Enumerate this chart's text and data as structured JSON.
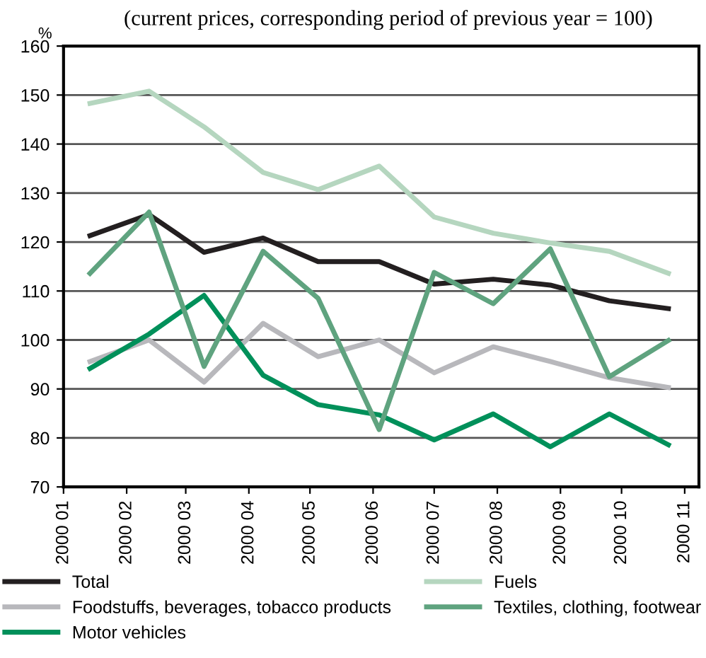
{
  "chart_data": {
    "type": "line",
    "subtitle": "(current prices, corresponding period of previous year = 100)",
    "ylabel": "%",
    "x": [
      "2000-01-14",
      "2000-02-12",
      "2000-03-10",
      "2000-04-08",
      "2000-05-05",
      "2000-06-04",
      "2000-07-01",
      "2000-07-30",
      "2000-08-27",
      "2000-09-25",
      "2000-10-24"
    ],
    "series": [
      {
        "name": "Total",
        "color": "#231f20",
        "values": [
          121.3,
          125.6,
          117.9,
          120.8,
          116.0,
          116.0,
          111.4,
          112.4,
          111.2,
          108.0,
          106.4
        ]
      },
      {
        "name": "Foodstuffs, beverages, tobacco products",
        "color": "#b8b8bc",
        "values": [
          95.6,
          100.0,
          91.4,
          103.4,
          96.6,
          100.0,
          93.3,
          98.6,
          95.6,
          92.3,
          90.3
        ]
      },
      {
        "name": "Motor vehicles",
        "color": "#00905a",
        "values": [
          94.2,
          101.2,
          109.1,
          92.8,
          86.8,
          84.7,
          79.6,
          84.9,
          78.2,
          84.9,
          78.6
        ]
      },
      {
        "name": "Fuels",
        "color": "#b5d6bf",
        "values": [
          148.3,
          150.8,
          143.5,
          134.2,
          130.7,
          135.5,
          125.1,
          121.8,
          119.8,
          118.1,
          113.6
        ]
      },
      {
        "name": "Textiles, clothing, footwear",
        "color": "#5fa37f",
        "values": [
          113.6,
          126.1,
          94.6,
          118.1,
          108.5,
          81.7,
          113.8,
          107.4,
          118.6,
          92.5,
          99.9
        ]
      }
    ],
    "xlim": [
      "2000-01",
      "2000-11-08"
    ],
    "xticks": [
      {
        "value": "2000-01",
        "label": "2000 01"
      },
      {
        "value": "2000-02",
        "label": "2000 02"
      },
      {
        "value": "2000-03",
        "label": "2000 03"
      },
      {
        "value": "2000-04",
        "label": "2000 04"
      },
      {
        "value": "2000-05",
        "label": "2000 05"
      },
      {
        "value": "2000-06",
        "label": "2000 06"
      },
      {
        "value": "2000-07",
        "label": "2000 07"
      },
      {
        "value": "2000-08",
        "label": "2000 08"
      },
      {
        "value": "2000-09",
        "label": "2000 09"
      },
      {
        "value": "2000-10",
        "label": "2000 10"
      },
      {
        "value": "2000-11",
        "label": "2000 11"
      }
    ],
    "ylim": [
      70,
      160
    ],
    "yticks": [
      70,
      80,
      90,
      100,
      110,
      120,
      130,
      140,
      150,
      160
    ],
    "grid": "y",
    "legend": "bottom",
    "marker": "none",
    "line_style": "solid"
  }
}
